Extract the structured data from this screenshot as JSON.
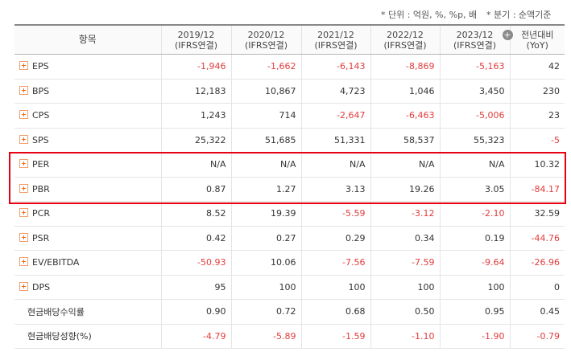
{
  "notes": {
    "unit": "* 단위 : 억원, %, %p, 배",
    "period": "* 분기 : 순액기준"
  },
  "header": {
    "item": "항목",
    "cols": [
      {
        "year": "2019/12",
        "basis": "(IFRS연결)"
      },
      {
        "year": "2020/12",
        "basis": "(IFRS연결)"
      },
      {
        "year": "2021/12",
        "basis": "(IFRS연결)"
      },
      {
        "year": "2022/12",
        "basis": "(IFRS연결)"
      },
      {
        "year": "2023/12",
        "basis": "(IFRS연결)"
      }
    ],
    "yoy": {
      "line1": "전년대비",
      "line2": "(YoY)"
    }
  },
  "rows": [
    {
      "label": "EPS",
      "expand": true,
      "values": [
        "-1,946",
        "-1,662",
        "-6,143",
        "-8,869",
        "-5,163",
        "42"
      ],
      "neg": [
        true,
        true,
        true,
        true,
        true,
        false
      ]
    },
    {
      "label": "BPS",
      "expand": true,
      "values": [
        "12,183",
        "10,867",
        "4,723",
        "1,046",
        "3,450",
        "230"
      ],
      "neg": [
        false,
        false,
        false,
        false,
        false,
        false
      ]
    },
    {
      "label": "CPS",
      "expand": true,
      "values": [
        "1,243",
        "714",
        "-2,647",
        "-6,463",
        "-5,006",
        "23"
      ],
      "neg": [
        false,
        false,
        true,
        true,
        true,
        false
      ]
    },
    {
      "label": "SPS",
      "expand": true,
      "values": [
        "25,322",
        "51,685",
        "51,331",
        "58,537",
        "55,323",
        "-5"
      ],
      "neg": [
        false,
        false,
        false,
        false,
        false,
        true
      ]
    },
    {
      "label": "PER",
      "expand": true,
      "values": [
        "N/A",
        "N/A",
        "N/A",
        "N/A",
        "N/A",
        "10.32"
      ],
      "neg": [
        false,
        false,
        false,
        false,
        false,
        false
      ]
    },
    {
      "label": "PBR",
      "expand": true,
      "values": [
        "0.87",
        "1.27",
        "3.13",
        "19.26",
        "3.05",
        "-84.17"
      ],
      "neg": [
        false,
        false,
        false,
        false,
        false,
        true
      ]
    },
    {
      "label": "PCR",
      "expand": true,
      "values": [
        "8.52",
        "19.39",
        "-5.59",
        "-3.12",
        "-2.10",
        "32.59"
      ],
      "neg": [
        false,
        false,
        true,
        true,
        true,
        false
      ]
    },
    {
      "label": "PSR",
      "expand": true,
      "values": [
        "0.42",
        "0.27",
        "0.29",
        "0.34",
        "0.19",
        "-44.76"
      ],
      "neg": [
        false,
        false,
        false,
        false,
        false,
        true
      ]
    },
    {
      "label": "EV/EBITDA",
      "expand": true,
      "values": [
        "-50.93",
        "10.06",
        "-7.56",
        "-7.59",
        "-9.64",
        "-26.96"
      ],
      "neg": [
        true,
        false,
        true,
        true,
        true,
        true
      ]
    },
    {
      "label": "DPS",
      "expand": true,
      "values": [
        "95",
        "100",
        "100",
        "100",
        "100",
        "0"
      ],
      "neg": [
        false,
        false,
        false,
        false,
        false,
        false
      ]
    },
    {
      "label": "현금배당수익률",
      "expand": false,
      "values": [
        "0.90",
        "0.72",
        "0.68",
        "0.50",
        "0.95",
        "0.45"
      ],
      "neg": [
        false,
        false,
        false,
        false,
        false,
        false
      ]
    },
    {
      "label": "현금배당성향(%)",
      "expand": false,
      "values": [
        "-4.79",
        "-5.89",
        "-1.59",
        "-1.10",
        "-1.90",
        "-0.79"
      ],
      "neg": [
        true,
        true,
        true,
        true,
        true,
        true
      ]
    }
  ],
  "colors": {
    "negative": "#e23c3c",
    "highlight": "#e60012",
    "expand_icon": "#e86d1f"
  },
  "icons": {
    "expand": "plus-square-icon",
    "add": "plus-circle-icon"
  }
}
